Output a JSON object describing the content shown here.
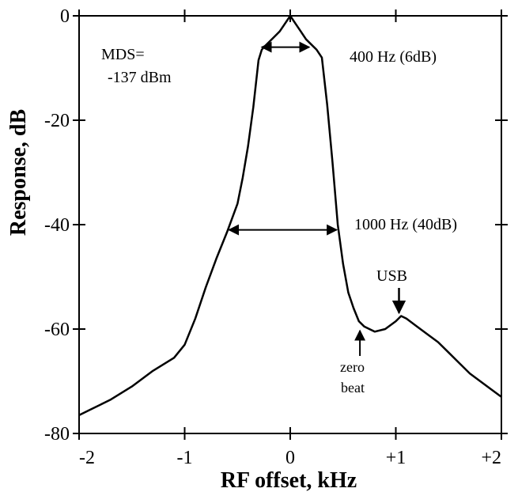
{
  "chart_data": {
    "type": "line",
    "title": "",
    "xlabel": "RF offset, kHz",
    "ylabel": "Response, dB",
    "xlim": [
      -2,
      2
    ],
    "ylim": [
      -80,
      0
    ],
    "x_ticks": [
      -2,
      -1,
      0,
      1,
      2
    ],
    "x_tick_labels": [
      "-2",
      "-1",
      "0",
      "+1",
      "+2"
    ],
    "y_ticks": [
      0,
      -20,
      -40,
      -60,
      -80
    ],
    "y_tick_labels": [
      "0",
      "-20",
      "-40",
      "-60",
      "-80"
    ],
    "grid": false,
    "series": [
      {
        "x": [
          -2.0,
          -1.9,
          -1.7,
          -1.5,
          -1.3,
          -1.1,
          -1.0,
          -0.9,
          -0.8,
          -0.7,
          -0.6,
          -0.5,
          -0.45,
          -0.4,
          -0.35,
          -0.3,
          -0.27,
          -0.25,
          -0.2,
          -0.15,
          -0.1,
          -0.05,
          0.0,
          0.05,
          0.1,
          0.15,
          0.2,
          0.25,
          0.3,
          0.35,
          0.4,
          0.45,
          0.5,
          0.55,
          0.6,
          0.65,
          0.7,
          0.75,
          0.8,
          0.9,
          1.0,
          1.05,
          1.1,
          1.2,
          1.3,
          1.4,
          1.5,
          1.6,
          1.7,
          1.8,
          1.9,
          2.0
        ],
        "y": [
          -76.5,
          -75.5,
          -73.5,
          -71.0,
          -68.0,
          -65.5,
          -63.0,
          -58.0,
          -52.0,
          -46.5,
          -41.5,
          -36.0,
          -31.0,
          -25.0,
          -17.5,
          -8.5,
          -6.5,
          -6.0,
          -5.0,
          -4.0,
          -3.0,
          -1.5,
          0.0,
          -1.5,
          -3.0,
          -4.5,
          -5.5,
          -6.5,
          -8.0,
          -17.0,
          -28.0,
          -40.0,
          -47.5,
          -53.0,
          -56.0,
          -58.5,
          -59.5,
          -60.0,
          -60.5,
          -60.0,
          -58.5,
          -57.5,
          -58.0,
          -59.5,
          -61.0,
          -62.5,
          -64.5,
          -66.5,
          -68.5,
          -70.0,
          -71.5,
          -73.0
        ]
      }
    ],
    "annotations": {
      "mds_line1": "MDS=",
      "mds_line2": "-137 dBm",
      "bw_6db": "400 Hz (6dB)",
      "bw_40db": "1000 Hz (40dB)",
      "usb": "USB",
      "zero_line1": "zero",
      "zero_line2": "beat"
    },
    "markers": {
      "bw_6db_range": [
        -0.27,
        0.18
      ],
      "bw_6db_level": -6.0,
      "bw_40db_range": [
        -0.58,
        0.44
      ],
      "bw_40db_level": -41.0,
      "usb_x": 1.03,
      "usb_level": -57.5,
      "zero_beat_x": 0.66,
      "zero_beat_level": -60.0
    }
  }
}
